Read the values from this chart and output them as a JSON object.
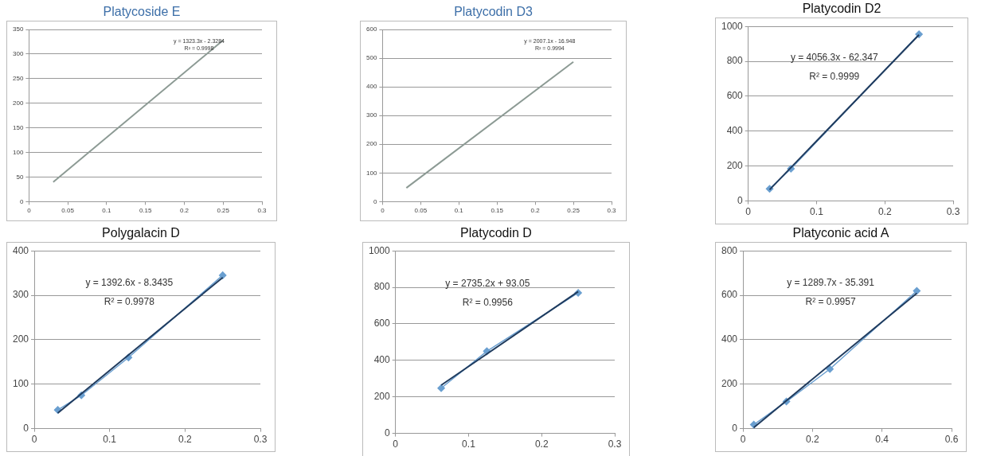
{
  "chart_data": [
    {
      "type": "line",
      "title": "Platycoside E",
      "xlim": [
        0,
        0.3
      ],
      "xticks": [
        0,
        0.05,
        0.1,
        0.15,
        0.2,
        0.25,
        0.3
      ],
      "ylim": [
        0,
        350
      ],
      "yticks": [
        0,
        50,
        100,
        150,
        200,
        250,
        300,
        350
      ],
      "grid": "y",
      "series": [
        {
          "type": "line",
          "color": "#8c9a94",
          "x": [
            0.03125,
            0.25
          ],
          "values": [
            40,
            328
          ]
        }
      ],
      "annotations": [
        "y = 1323.3x - 2.3284",
        "R² = 0.9998"
      ]
    },
    {
      "type": "line",
      "title": "Platycodin D3",
      "xlim": [
        0,
        0.3
      ],
      "xticks": [
        0,
        0.05,
        0.1,
        0.15,
        0.2,
        0.25,
        0.3
      ],
      "ylim": [
        0,
        600
      ],
      "yticks": [
        0,
        100,
        200,
        300,
        400,
        500,
        600
      ],
      "grid": "y",
      "series": [
        {
          "type": "line",
          "color": "#8c9a94",
          "x": [
            0.03125,
            0.25
          ],
          "values": [
            48,
            487
          ]
        }
      ],
      "annotations": [
        "y = 2007.1x - 16.948",
        "R² = 0.9994"
      ]
    },
    {
      "type": "line",
      "title": "Platycodin D2",
      "xlim": [
        0,
        0.3
      ],
      "xticks": [
        0,
        0.1,
        0.2,
        0.3
      ],
      "ylim": [
        0,
        1000
      ],
      "yticks": [
        0,
        200,
        400,
        600,
        800,
        1000
      ],
      "grid": "y",
      "series": [
        {
          "type": "line",
          "color": "#6a9fd0",
          "marker": "diamond",
          "x": [
            0.03125,
            0.0625,
            0.25
          ],
          "values": [
            70,
            185,
            955
          ]
        },
        {
          "type": "line",
          "color": "#1f3b5e",
          "x": [
            0.03125,
            0.25
          ],
          "values": [
            65,
            952
          ]
        }
      ],
      "annotations": [
        "y = 4056.3x - 62.347",
        "R² = 0.9999"
      ]
    },
    {
      "type": "line",
      "title": "Polygalacin D",
      "xlim": [
        0,
        0.3
      ],
      "xticks": [
        0,
        0.1,
        0.2,
        0.3
      ],
      "ylim": [
        0,
        400
      ],
      "yticks": [
        0,
        100,
        200,
        300,
        400
      ],
      "grid": "y",
      "series": [
        {
          "type": "line",
          "color": "#6a9fd0",
          "marker": "diamond",
          "x": [
            0.03125,
            0.0625,
            0.125,
            0.25
          ],
          "values": [
            42,
            75,
            160,
            345
          ]
        },
        {
          "type": "line",
          "color": "#1f3b5e",
          "x": [
            0.03125,
            0.25
          ],
          "values": [
            35,
            340
          ]
        }
      ],
      "annotations": [
        "y = 1392.6x - 8.3435",
        "R² = 0.9978"
      ]
    },
    {
      "type": "line",
      "title": "Platycodin D",
      "xlim": [
        0,
        0.3
      ],
      "xticks": [
        0,
        0.1,
        0.2,
        0.3
      ],
      "ylim": [
        0,
        1000
      ],
      "yticks": [
        0,
        200,
        400,
        600,
        800,
        1000
      ],
      "grid": "y",
      "series": [
        {
          "type": "line",
          "color": "#6a9fd0",
          "marker": "diamond",
          "x": [
            0.0625,
            0.125,
            0.25
          ],
          "values": [
            248,
            450,
            770
          ]
        },
        {
          "type": "line",
          "color": "#1f3b5e",
          "x": [
            0.0625,
            0.25
          ],
          "values": [
            264,
            777
          ]
        }
      ],
      "annotations": [
        "y = 2735.2x + 93.05",
        "R² = 0.9956"
      ]
    },
    {
      "type": "line",
      "title": "Platyconic acid A",
      "xlim": [
        0,
        0.6
      ],
      "xticks": [
        0,
        0.2,
        0.4,
        0.6
      ],
      "ylim": [
        0,
        800
      ],
      "yticks": [
        0,
        200,
        400,
        600,
        800
      ],
      "grid": "y",
      "series": [
        {
          "type": "line",
          "color": "#6a9fd0",
          "marker": "diamond",
          "x": [
            0.03125,
            0.125,
            0.25,
            0.5
          ],
          "values": [
            18,
            122,
            268,
            620
          ]
        },
        {
          "type": "line",
          "color": "#1f3b5e",
          "x": [
            0.03125,
            0.5
          ],
          "values": [
            5,
            609
          ]
        }
      ],
      "annotations": [
        "y = 1289.7x - 35.391",
        "R² = 0.9957"
      ]
    }
  ]
}
